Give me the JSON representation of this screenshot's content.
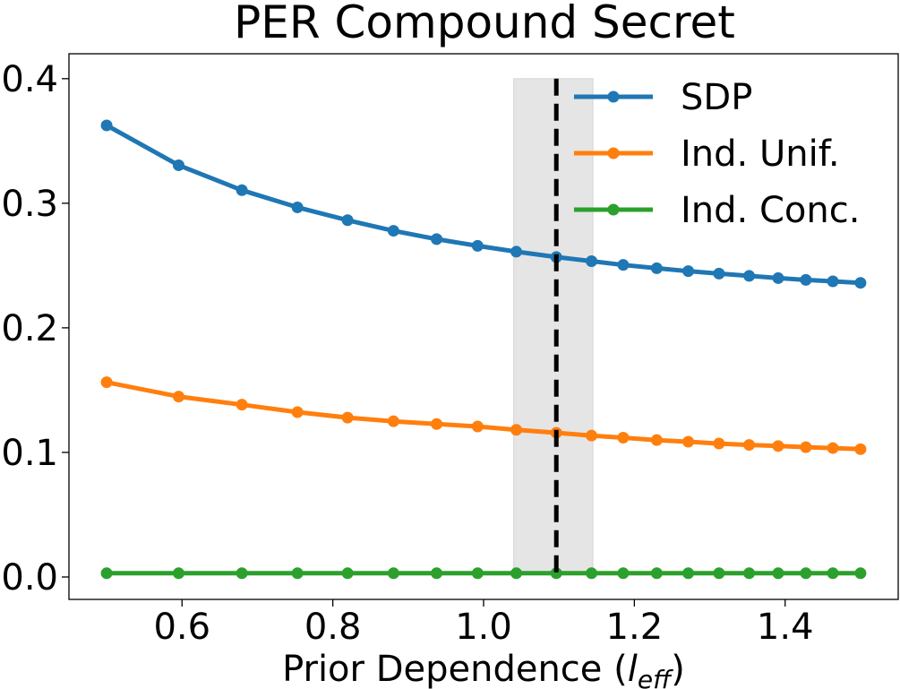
{
  "chart_data": {
    "type": "line",
    "title": "PER Compound Secret",
    "xlabel_main": "Prior Dependence (",
    "xlabel_symbol": "l",
    "xlabel_subscript": "eff",
    "xlabel_close": ")",
    "x": [
      0.5,
      0.5955,
      0.6794,
      0.7531,
      0.8196,
      0.8805,
      0.9377,
      0.9921,
      1.0434,
      1.0965,
      1.1432,
      1.1852,
      1.2297,
      1.2715,
      1.3123,
      1.3523,
      1.3908,
      1.4275,
      1.4633,
      1.5
    ],
    "series": [
      {
        "name": "SDP",
        "color": "#1f77b4",
        "values": [
          0.3625,
          0.3305,
          0.3105,
          0.2967,
          0.2864,
          0.2779,
          0.2712,
          0.2658,
          0.2611,
          0.2568,
          0.2535,
          0.2505,
          0.2478,
          0.2455,
          0.2435,
          0.2417,
          0.2399,
          0.2385,
          0.2373,
          0.2361
        ]
      },
      {
        "name": "Ind. Unif.",
        "color": "#ff7f0e",
        "values": [
          0.1563,
          0.1448,
          0.1383,
          0.1323,
          0.1279,
          0.125,
          0.1228,
          0.1208,
          0.1181,
          0.1158,
          0.1135,
          0.1118,
          0.1099,
          0.1086,
          0.1071,
          0.106,
          0.1051,
          0.1042,
          0.1035,
          0.1026
        ]
      },
      {
        "name": "Ind. Conc.",
        "color": "#2ca02c",
        "values": [
          0.003,
          0.003,
          0.003,
          0.003,
          0.003,
          0.003,
          0.003,
          0.003,
          0.003,
          0.003,
          0.003,
          0.003,
          0.003,
          0.003,
          0.003,
          0.003,
          0.003,
          0.003,
          0.003,
          0.003
        ]
      }
    ],
    "vline": {
      "x": 1.0965,
      "style": "dashed",
      "color": "#000000"
    },
    "shaded_band": {
      "x_start": 1.04,
      "x_end": 1.145,
      "color": "#e5e5e5"
    },
    "xlim": [
      0.45,
      1.55
    ],
    "ylim": [
      -0.018,
      0.42
    ],
    "xticks": [
      0.6,
      0.8,
      1.0,
      1.2,
      1.4
    ],
    "xtick_labels": [
      "0.6",
      "0.8",
      "1.0",
      "1.2",
      "1.4"
    ],
    "yticks": [
      0.0,
      0.1,
      0.2,
      0.3,
      0.4
    ],
    "ytick_labels": [
      "0.0",
      "0.1",
      "0.2",
      "0.3",
      "0.4"
    ],
    "grid": false,
    "legend_position": "top-right"
  }
}
